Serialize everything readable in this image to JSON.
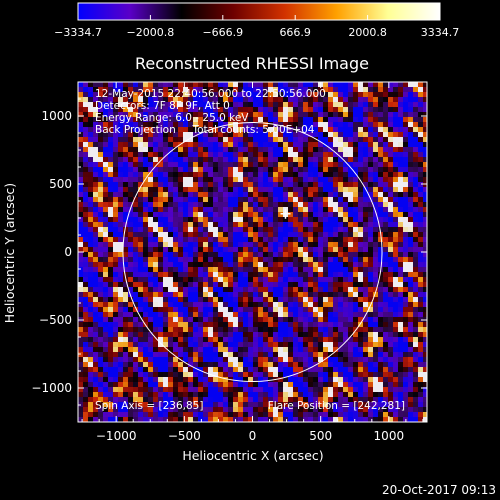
{
  "colorbar": {
    "ticks": [
      "-3334.7",
      "-2000.8",
      "-666.9",
      "666.9",
      "2000.8",
      "3334.7"
    ],
    "range": [
      -3334.7,
      3334.7
    ],
    "colormap": [
      "#0000ff",
      "#5a00c8",
      "#000000",
      "#6e0000",
      "#d23200",
      "#ffa000",
      "#ffff96",
      "#ffffff"
    ]
  },
  "chart_data": {
    "type": "heatmap",
    "title": "Reconstructed RHESSI Image",
    "xlabel": "Heliocentric X (arcsec)",
    "ylabel": "Heliocentric Y (arcsec)",
    "xlim": [
      -1280,
      1280
    ],
    "ylim": [
      -1250,
      1250
    ],
    "xticks": [
      -1000,
      -500,
      0,
      500,
      1000
    ],
    "yticks": [
      -1000,
      -500,
      0,
      500,
      1000
    ],
    "xtick_labels": [
      "−1000",
      "−500",
      "0",
      "500",
      "1000"
    ],
    "ytick_labels": [
      "−1000",
      "−500",
      "0",
      "500",
      "1000"
    ],
    "solar_limb_radius": 950,
    "flare_marker": [
      242,
      281
    ],
    "info_lines": [
      "12-May-2015 22:40:56.000 to 22:50:56.000",
      "Detectors: 7F 8F 9F, Att 0",
      "Energy Range: 6.0 - 25.0 keV",
      "Back Projection     Total counts: 5.00E+04"
    ],
    "spin_axis": "Spin Axis = [236,85]",
    "flare_position": "Flare Position = [242,281]"
  },
  "footer": {
    "timestamp": "20-Oct-2017 09:13"
  }
}
